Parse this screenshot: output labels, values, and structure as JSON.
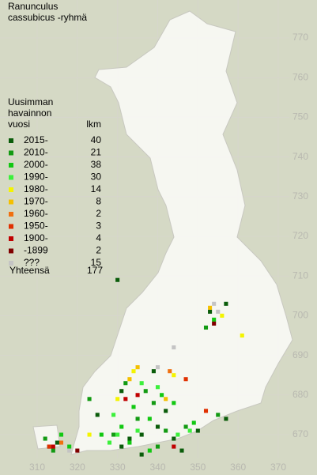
{
  "map": {
    "title": [
      "Ranunculus",
      "cassubicus -ryhmä"
    ],
    "legend_title": [
      "Uusimman",
      "havainnon",
      "vuosi"
    ],
    "count_header": "lkm",
    "legend": [
      {
        "label": "2015-",
        "count": 40,
        "color": "#0a5c0a",
        "squares": [
          [
            313,
            667
          ],
          [
            315,
            668
          ],
          [
            333,
            669
          ],
          [
            336,
            670
          ],
          [
            340,
            672
          ],
          [
            344,
            669
          ],
          [
            350,
            671
          ],
          [
            357,
            674
          ],
          [
            339,
            686
          ],
          [
            357,
            703
          ],
          [
            353,
            701
          ],
          [
            330,
            709
          ],
          [
            325,
            675
          ],
          [
            331,
            681
          ],
          [
            342,
            676
          ],
          [
            331,
            667
          ],
          [
            336,
            665
          ],
          [
            346,
            666
          ]
        ]
      },
      {
        "label": "2010-",
        "count": 21,
        "color": "#139a13",
        "squares": [
          [
            312,
            669
          ],
          [
            314,
            666
          ],
          [
            329,
            670
          ],
          [
            335,
            674
          ],
          [
            339,
            678
          ],
          [
            347,
            672
          ],
          [
            355,
            675
          ],
          [
            340,
            667
          ],
          [
            332,
            683
          ],
          [
            337,
            681
          ],
          [
            352,
            697
          ],
          [
            323,
            679
          ],
          [
            342,
            671
          ]
        ]
      },
      {
        "label": "2000-",
        "count": 38,
        "color": "#12c812",
        "squares": [
          [
            316,
            670
          ],
          [
            331,
            672
          ],
          [
            333,
            668
          ],
          [
            338,
            674
          ],
          [
            341,
            680
          ],
          [
            349,
            673
          ],
          [
            354,
            699
          ],
          [
            326,
            670
          ],
          [
            334,
            677
          ],
          [
            344,
            678
          ],
          [
            338,
            666
          ],
          [
            318,
            667
          ]
        ]
      },
      {
        "label": "1990-",
        "count": 30,
        "color": "#3cf03c",
        "squares": [
          [
            328,
            668
          ],
          [
            330,
            670
          ],
          [
            335,
            671
          ],
          [
            345,
            670
          ],
          [
            348,
            671
          ],
          [
            336,
            683
          ],
          [
            329,
            675
          ],
          [
            340,
            682
          ]
        ]
      },
      {
        "label": "1980-",
        "count": 14,
        "color": "#f4f400",
        "squares": [
          [
            334,
            686
          ],
          [
            356,
            700
          ],
          [
            361,
            695
          ],
          [
            323,
            670
          ],
          [
            344,
            685
          ],
          [
            330,
            679
          ]
        ]
      },
      {
        "label": "1970-",
        "count": 8,
        "color": "#f4c000",
        "squares": [
          [
            333,
            684
          ],
          [
            335,
            687
          ],
          [
            353,
            702
          ],
          [
            342,
            679
          ]
        ]
      },
      {
        "label": "1960-",
        "count": 2,
        "color": "#f07010",
        "squares": [
          [
            343,
            686
          ],
          [
            316,
            668
          ]
        ]
      },
      {
        "label": "1950-",
        "count": 3,
        "color": "#e03000",
        "squares": [
          [
            313,
            667
          ],
          [
            352,
            676
          ],
          [
            347,
            684
          ]
        ]
      },
      {
        "label": "1900-",
        "count": 4,
        "color": "#c00000",
        "squares": [
          [
            332,
            679
          ],
          [
            314,
            667
          ],
          [
            335,
            680
          ],
          [
            344,
            667
          ]
        ]
      },
      {
        "label": "-1899",
        "count": 2,
        "color": "#800000",
        "squares": [
          [
            354,
            698
          ],
          [
            320,
            666
          ]
        ]
      },
      {
        "label": "???",
        "count": 15,
        "color": "#c4c4c4",
        "squares": [
          [
            354,
            703
          ],
          [
            355,
            701
          ],
          [
            344,
            692
          ],
          [
            318,
            666
          ],
          [
            340,
            687
          ]
        ]
      }
    ],
    "total_label": "Yhteensä",
    "total": 177,
    "xticks": [
      310,
      320,
      330,
      340,
      350,
      360,
      370
    ],
    "yticks": [
      670,
      680,
      690,
      700,
      710,
      720,
      730,
      740,
      750,
      760,
      770
    ]
  }
}
